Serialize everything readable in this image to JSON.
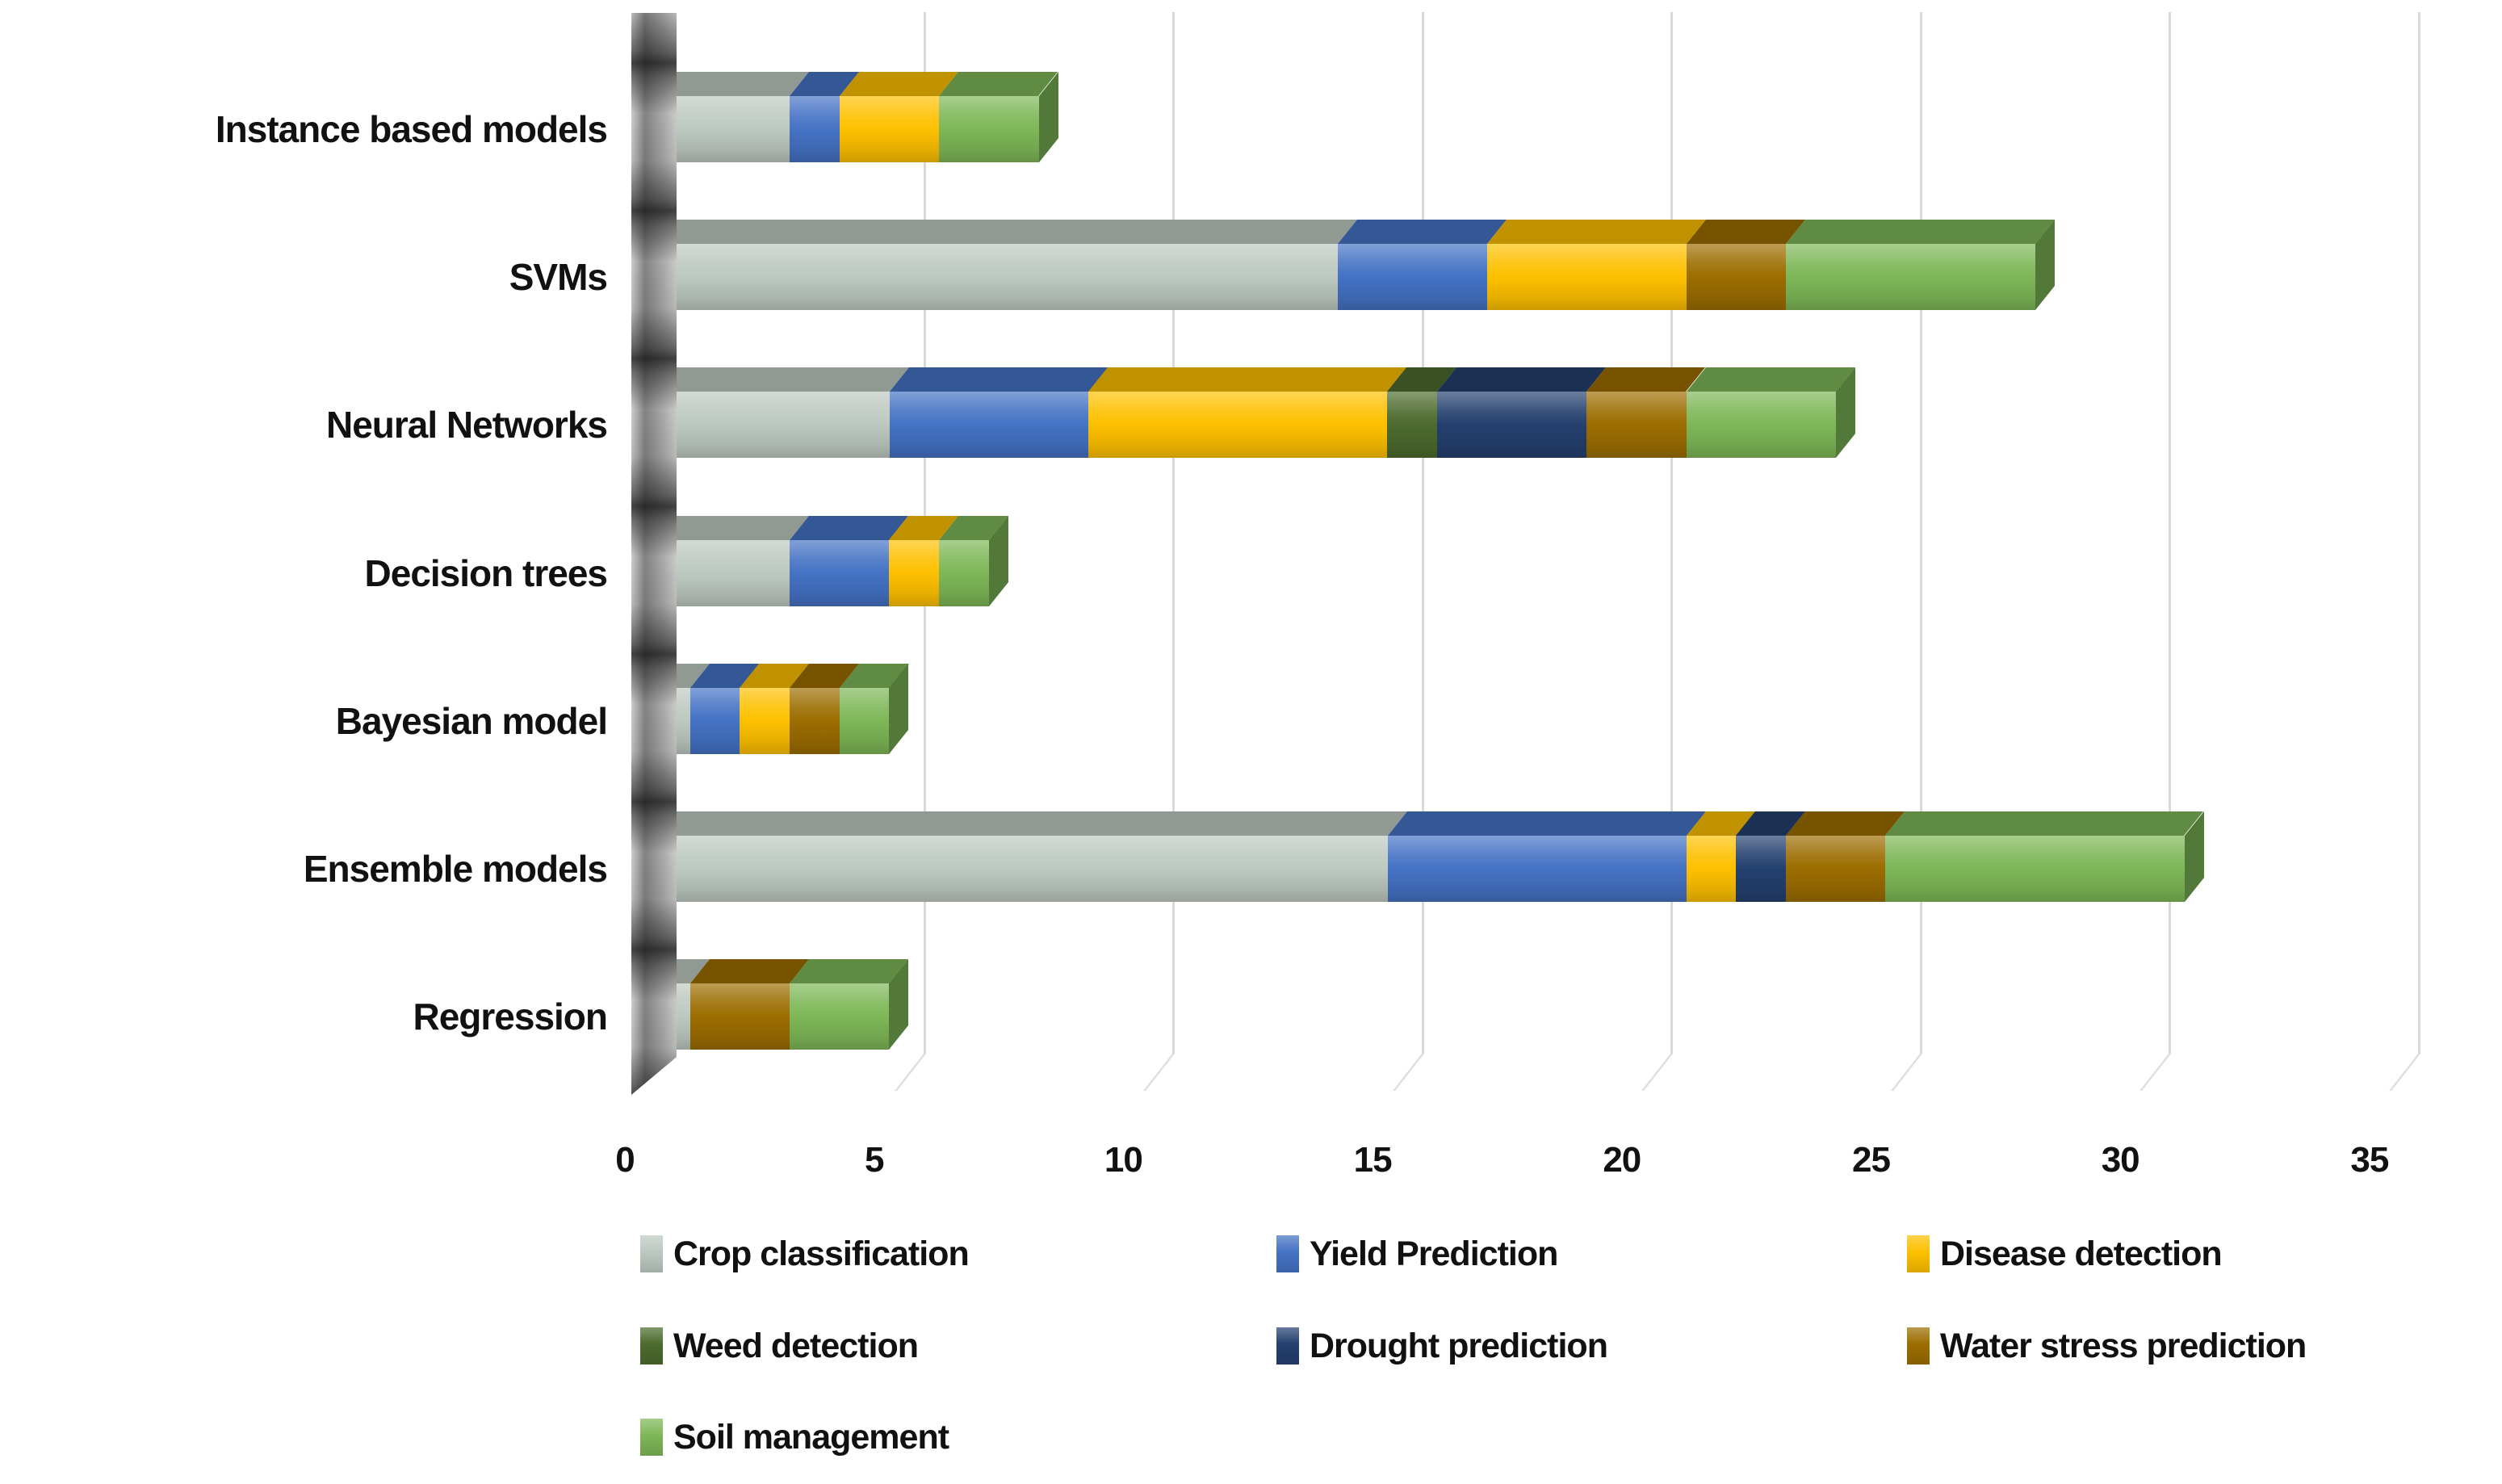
{
  "chart_data": {
    "type": "bar",
    "subtype": "horizontal-stacked-3d",
    "title": "",
    "xlabel": "",
    "ylabel": "",
    "categories": [
      "Instance based models",
      "SVMs",
      "Neural Networks",
      "Decision trees",
      "Bayesian model",
      "Ensemble models",
      "Regression"
    ],
    "series": [
      {
        "name": "Crop classification",
        "color": "#bdc9c0",
        "values": [
          3,
          14,
          5,
          3,
          1,
          15,
          1
        ]
      },
      {
        "name": "Yield Prediction",
        "color": "#4472c4",
        "values": [
          1,
          3,
          4,
          2,
          1,
          6,
          0
        ]
      },
      {
        "name": "Disease detection",
        "color": "#fec000",
        "values": [
          2,
          4,
          6,
          1,
          1,
          1,
          0
        ]
      },
      {
        "name": "Weed detection",
        "color": "#4c6b2e",
        "values": [
          0,
          0,
          1,
          0,
          0,
          0,
          0
        ]
      },
      {
        "name": "Drought prediction",
        "color": "#24406f",
        "values": [
          0,
          0,
          3,
          0,
          0,
          1,
          0
        ]
      },
      {
        "name": "Water stress prediction",
        "color": "#9c6d00",
        "values": [
          0,
          2,
          2,
          0,
          1,
          2,
          2
        ]
      },
      {
        "name": "Soil management",
        "color": "#7eb757",
        "values": [
          2,
          5,
          3,
          1,
          1,
          6,
          2
        ]
      }
    ],
    "x_ticks": [
      "0",
      "5",
      "10",
      "15",
      "20",
      "25",
      "30",
      "35"
    ],
    "xlim": [
      0,
      35
    ],
    "grid": "on",
    "grid_color": "#d9d9d9",
    "legend_position": "bottom",
    "background": "#ffffff"
  }
}
